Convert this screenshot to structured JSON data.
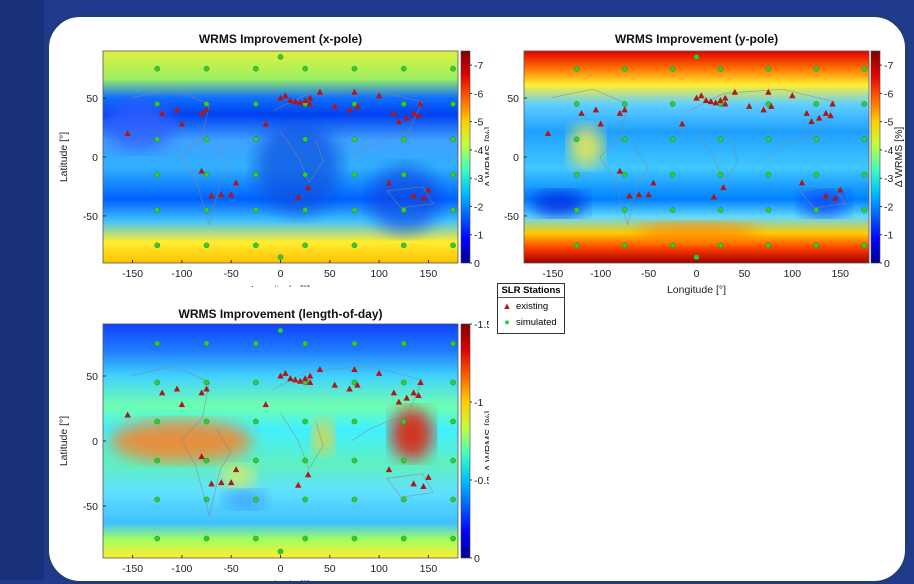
{
  "legend": {
    "title": "SLR Stations",
    "existing": "existing",
    "simulated": "simulated"
  },
  "colors": {
    "existing": "#b01818",
    "simulated": "#33cc33"
  },
  "chart_data": [
    {
      "type": "heatmap",
      "title": "WRMS Improvement (x-pole)",
      "xlabel": "Longitude [°]",
      "ylabel": "Latitude [°]",
      "colorbar_label": "Δ WRMS [%]",
      "xlim": [
        -180,
        180
      ],
      "ylim": [
        -90,
        90
      ],
      "xticks": [
        -150,
        -100,
        -50,
        0,
        50,
        100,
        150
      ],
      "yticks": [
        50,
        0,
        -50
      ],
      "cticks": [
        "-7",
        "-6",
        "-5",
        "-4",
        "-3",
        "-2",
        "-1",
        "0"
      ],
      "crange": [
        0,
        -7.5
      ]
    },
    {
      "type": "heatmap",
      "title": "WRMS Improvement (y-pole)",
      "xlabel": "Longitude [°]",
      "ylabel": "",
      "colorbar_label": "Δ WRMS [%]",
      "xlim": [
        -180,
        180
      ],
      "ylim": [
        -90,
        90
      ],
      "xticks": [
        -150,
        -100,
        -50,
        0,
        50,
        100,
        150
      ],
      "yticks": [
        50,
        0,
        -50
      ],
      "cticks": [
        "-7",
        "-6",
        "-5",
        "-4",
        "-3",
        "-2",
        "-1",
        "0"
      ],
      "crange": [
        0,
        -7.5
      ]
    },
    {
      "type": "heatmap",
      "title": "WRMS Improvement (length-of-day)",
      "xlabel": "Longitude [°]",
      "ylabel": "Latitude [°]",
      "colorbar_label": "Δ WRMS [%]",
      "xlim": [
        -180,
        180
      ],
      "ylim": [
        -90,
        90
      ],
      "xticks": [
        -150,
        -100,
        -50,
        0,
        50,
        100,
        150
      ],
      "yticks": [
        50,
        0,
        -50
      ],
      "cticks": [
        "-1.5",
        "-1",
        "-0.5",
        "0"
      ],
      "crange": [
        0,
        -1.5
      ]
    }
  ]
}
